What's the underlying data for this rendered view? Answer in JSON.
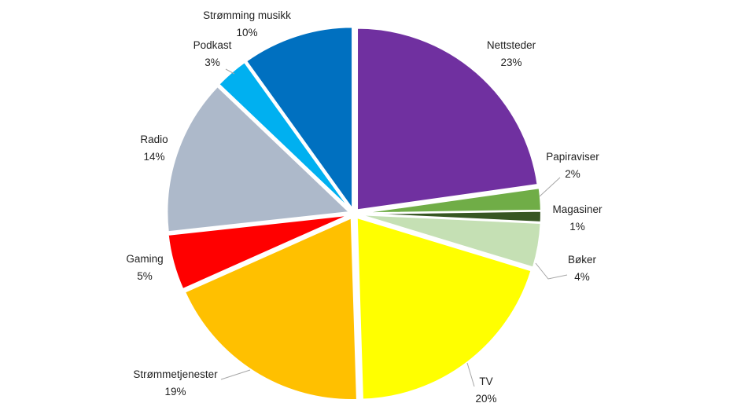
{
  "chart_data": {
    "type": "pie",
    "title": "",
    "slices": [
      {
        "label": "Nettsteder",
        "value": 23,
        "value_label": "23%",
        "color": "#7030A0"
      },
      {
        "label": "Papiraviser",
        "value": 2,
        "value_label": "2%",
        "color": "#70AD47"
      },
      {
        "label": "Magasiner",
        "value": 1,
        "value_label": "1%",
        "color": "#375623"
      },
      {
        "label": "Bøker",
        "value": 4,
        "value_label": "4%",
        "color": "#C5E0B4"
      },
      {
        "label": "TV",
        "value": 20,
        "value_label": "20%",
        "color": "#FFFF00"
      },
      {
        "label": "Strømmetjenester",
        "value": 19,
        "value_label": "19%",
        "color": "#FFC000"
      },
      {
        "label": "Gaming",
        "value": 5,
        "value_label": "5%",
        "color": "#FF0000"
      },
      {
        "label": "Radio",
        "value": 14,
        "value_label": "14%",
        "color": "#ADB9CA"
      },
      {
        "label": "Podkast",
        "value": 3,
        "value_label": "3%",
        "color": "#00B0F0"
      },
      {
        "label": "Strømming musikk",
        "value": 10,
        "value_label": "10%",
        "color": "#0070C0"
      }
    ],
    "start_position": "12 o'clock",
    "direction": "clockwise",
    "exploded": true,
    "legend": "none",
    "labels": "outside, category name above percent"
  }
}
